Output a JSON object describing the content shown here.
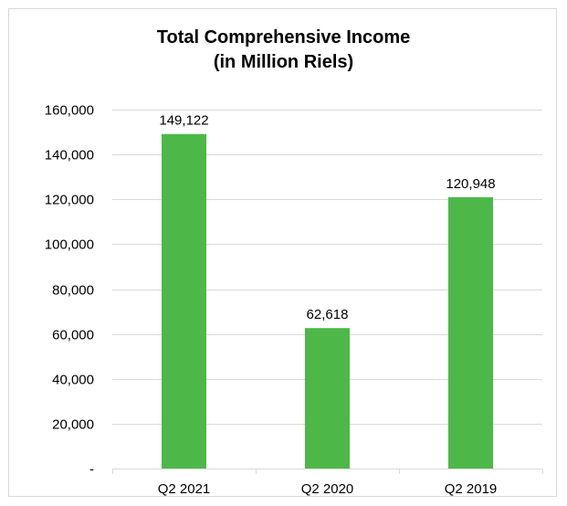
{
  "chart_data": {
    "type": "bar",
    "title_lines": [
      "Total Comprehensive Income",
      "(in Million Riels)"
    ],
    "categories": [
      "Q2 2021",
      "Q2 2020",
      "Q2 2019"
    ],
    "values": [
      149122,
      62618,
      120948
    ],
    "value_labels": [
      "149,122",
      "62,618",
      "120,948"
    ],
    "ylim": [
      0,
      160000
    ],
    "y_ticks": [
      0,
      20000,
      40000,
      60000,
      80000,
      100000,
      120000,
      140000,
      160000
    ],
    "y_tick_labels": [
      "-",
      "20,000",
      "40,000",
      "60,000",
      "80,000",
      "100,000",
      "120,000",
      "140,000",
      "160,000"
    ],
    "xlabel": "",
    "ylabel": "",
    "grid": true,
    "legend": "none",
    "bar_color": "#4db848",
    "grid_color": "#d9d9d9"
  }
}
